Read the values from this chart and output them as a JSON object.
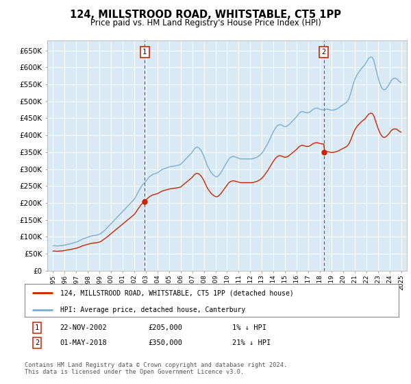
{
  "title": "124, MILLSTROOD ROAD, WHITSTABLE, CT5 1PP",
  "subtitle": "Price paid vs. HM Land Registry's House Price Index (HPI)",
  "ylim": [
    0,
    680000
  ],
  "yticks": [
    0,
    50000,
    100000,
    150000,
    200000,
    250000,
    300000,
    350000,
    400000,
    450000,
    500000,
    550000,
    600000,
    650000
  ],
  "ytick_labels": [
    "£0",
    "£50K",
    "£100K",
    "£150K",
    "£200K",
    "£250K",
    "£300K",
    "£350K",
    "£400K",
    "£450K",
    "£500K",
    "£550K",
    "£600K",
    "£650K"
  ],
  "xlim_start": 1994.5,
  "xlim_end": 2025.5,
  "background_color": "#daeaf5",
  "fig_bg_color": "#ffffff",
  "hpi_color": "#7aadcf",
  "price_color": "#cc2200",
  "vline_color": "#cc2200",
  "sale1_x": 2002.9,
  "sale1_y": 205000,
  "sale2_x": 2018.33,
  "sale2_y": 350000,
  "legend_line1": "124, MILLSTROOD ROAD, WHITSTABLE, CT5 1PP (detached house)",
  "legend_line2": "HPI: Average price, detached house, Canterbury",
  "table_row1_num": "1",
  "table_row1_date": "22-NOV-2002",
  "table_row1_price": "£205,000",
  "table_row1_hpi": "1% ↓ HPI",
  "table_row2_num": "2",
  "table_row2_date": "01-MAY-2018",
  "table_row2_price": "£350,000",
  "table_row2_hpi": "21% ↓ HPI",
  "footnote": "Contains HM Land Registry data © Crown copyright and database right 2024.\nThis data is licensed under the Open Government Licence v3.0.",
  "hpi_data": [
    [
      1995.0,
      73500
    ],
    [
      1995.08,
      74200
    ],
    [
      1995.17,
      73800
    ],
    [
      1995.25,
      73200
    ],
    [
      1995.33,
      72800
    ],
    [
      1995.42,
      73000
    ],
    [
      1995.5,
      73500
    ],
    [
      1995.58,
      74000
    ],
    [
      1995.67,
      73800
    ],
    [
      1995.75,
      74200
    ],
    [
      1995.83,
      74800
    ],
    [
      1995.92,
      75200
    ],
    [
      1996.0,
      75800
    ],
    [
      1996.08,
      76500
    ],
    [
      1996.17,
      77200
    ],
    [
      1996.25,
      77800
    ],
    [
      1996.33,
      78500
    ],
    [
      1996.42,
      79000
    ],
    [
      1996.5,
      79800
    ],
    [
      1996.58,
      80500
    ],
    [
      1996.67,
      81200
    ],
    [
      1996.75,
      82000
    ],
    [
      1996.83,
      82800
    ],
    [
      1996.92,
      83500
    ],
    [
      1997.0,
      84500
    ],
    [
      1997.08,
      85500
    ],
    [
      1997.17,
      86800
    ],
    [
      1997.25,
      88000
    ],
    [
      1997.33,
      89500
    ],
    [
      1997.42,
      91000
    ],
    [
      1997.5,
      92500
    ],
    [
      1997.58,
      94000
    ],
    [
      1997.67,
      95000
    ],
    [
      1997.75,
      96000
    ],
    [
      1997.83,
      97000
    ],
    [
      1997.92,
      98000
    ],
    [
      1998.0,
      99000
    ],
    [
      1998.08,
      100000
    ],
    [
      1998.17,
      101000
    ],
    [
      1998.25,
      102000
    ],
    [
      1998.33,
      103000
    ],
    [
      1998.42,
      103500
    ],
    [
      1998.5,
      103800
    ],
    [
      1998.58,
      104000
    ],
    [
      1998.67,
      104500
    ],
    [
      1998.75,
      105000
    ],
    [
      1998.83,
      105800
    ],
    [
      1998.92,
      106500
    ],
    [
      1999.0,
      107500
    ],
    [
      1999.08,
      109000
    ],
    [
      1999.17,
      111000
    ],
    [
      1999.25,
      113500
    ],
    [
      1999.33,
      116000
    ],
    [
      1999.42,
      118500
    ],
    [
      1999.5,
      121000
    ],
    [
      1999.58,
      124000
    ],
    [
      1999.67,
      127000
    ],
    [
      1999.75,
      130000
    ],
    [
      1999.83,
      133000
    ],
    [
      1999.92,
      136000
    ],
    [
      2000.0,
      139000
    ],
    [
      2000.08,
      142000
    ],
    [
      2000.17,
      145000
    ],
    [
      2000.25,
      148000
    ],
    [
      2000.33,
      151000
    ],
    [
      2000.42,
      154000
    ],
    [
      2000.5,
      157000
    ],
    [
      2000.58,
      160000
    ],
    [
      2000.67,
      163000
    ],
    [
      2000.75,
      166000
    ],
    [
      2000.83,
      169000
    ],
    [
      2000.92,
      172000
    ],
    [
      2001.0,
      175000
    ],
    [
      2001.08,
      178000
    ],
    [
      2001.17,
      181000
    ],
    [
      2001.25,
      184000
    ],
    [
      2001.33,
      187000
    ],
    [
      2001.42,
      190000
    ],
    [
      2001.5,
      193000
    ],
    [
      2001.58,
      196000
    ],
    [
      2001.67,
      199000
    ],
    [
      2001.75,
      202000
    ],
    [
      2001.83,
      205000
    ],
    [
      2001.92,
      208000
    ],
    [
      2002.0,
      211000
    ],
    [
      2002.08,
      216000
    ],
    [
      2002.17,
      221000
    ],
    [
      2002.25,
      227000
    ],
    [
      2002.33,
      232000
    ],
    [
      2002.42,
      237000
    ],
    [
      2002.5,
      242000
    ],
    [
      2002.58,
      247000
    ],
    [
      2002.67,
      251000
    ],
    [
      2002.75,
      255000
    ],
    [
      2002.83,
      258000
    ],
    [
      2002.92,
      261000
    ],
    [
      2003.0,
      264000
    ],
    [
      2003.08,
      268000
    ],
    [
      2003.17,
      272000
    ],
    [
      2003.25,
      275000
    ],
    [
      2003.33,
      278000
    ],
    [
      2003.42,
      280000
    ],
    [
      2003.5,
      282000
    ],
    [
      2003.58,
      284000
    ],
    [
      2003.67,
      285000
    ],
    [
      2003.75,
      286000
    ],
    [
      2003.83,
      287000
    ],
    [
      2003.92,
      288000
    ],
    [
      2004.0,
      289000
    ],
    [
      2004.08,
      291000
    ],
    [
      2004.17,
      293000
    ],
    [
      2004.25,
      295000
    ],
    [
      2004.33,
      297000
    ],
    [
      2004.42,
      299000
    ],
    [
      2004.5,
      300000
    ],
    [
      2004.58,
      301000
    ],
    [
      2004.67,
      302000
    ],
    [
      2004.75,
      303000
    ],
    [
      2004.83,
      304000
    ],
    [
      2004.92,
      305000
    ],
    [
      2005.0,
      306000
    ],
    [
      2005.08,
      307000
    ],
    [
      2005.17,
      307500
    ],
    [
      2005.25,
      308000
    ],
    [
      2005.33,
      308500
    ],
    [
      2005.42,
      309000
    ],
    [
      2005.5,
      309500
    ],
    [
      2005.58,
      310000
    ],
    [
      2005.67,
      310500
    ],
    [
      2005.75,
      311000
    ],
    [
      2005.83,
      312000
    ],
    [
      2005.92,
      313000
    ],
    [
      2006.0,
      314000
    ],
    [
      2006.08,
      317000
    ],
    [
      2006.17,
      320000
    ],
    [
      2006.25,
      323000
    ],
    [
      2006.33,
      326000
    ],
    [
      2006.42,
      329000
    ],
    [
      2006.5,
      332000
    ],
    [
      2006.58,
      335000
    ],
    [
      2006.67,
      338000
    ],
    [
      2006.75,
      341000
    ],
    [
      2006.83,
      344000
    ],
    [
      2006.92,
      347000
    ],
    [
      2007.0,
      350000
    ],
    [
      2007.08,
      355000
    ],
    [
      2007.17,
      359000
    ],
    [
      2007.25,
      362000
    ],
    [
      2007.33,
      364000
    ],
    [
      2007.42,
      365000
    ],
    [
      2007.5,
      364000
    ],
    [
      2007.58,
      362000
    ],
    [
      2007.67,
      359000
    ],
    [
      2007.75,
      355000
    ],
    [
      2007.83,
      350000
    ],
    [
      2007.92,
      344000
    ],
    [
      2008.0,
      338000
    ],
    [
      2008.08,
      330000
    ],
    [
      2008.17,
      322000
    ],
    [
      2008.25,
      314000
    ],
    [
      2008.33,
      308000
    ],
    [
      2008.42,
      302000
    ],
    [
      2008.5,
      297000
    ],
    [
      2008.58,
      292000
    ],
    [
      2008.67,
      288000
    ],
    [
      2008.75,
      285000
    ],
    [
      2008.83,
      282000
    ],
    [
      2008.92,
      280000
    ],
    [
      2009.0,
      278000
    ],
    [
      2009.08,
      277000
    ],
    [
      2009.17,
      278000
    ],
    [
      2009.25,
      280000
    ],
    [
      2009.33,
      283000
    ],
    [
      2009.42,
      287000
    ],
    [
      2009.5,
      291000
    ],
    [
      2009.58,
      296000
    ],
    [
      2009.67,
      301000
    ],
    [
      2009.75,
      306000
    ],
    [
      2009.83,
      311000
    ],
    [
      2009.92,
      316000
    ],
    [
      2010.0,
      321000
    ],
    [
      2010.08,
      326000
    ],
    [
      2010.17,
      330000
    ],
    [
      2010.25,
      333000
    ],
    [
      2010.33,
      335000
    ],
    [
      2010.42,
      336000
    ],
    [
      2010.5,
      337000
    ],
    [
      2010.58,
      337000
    ],
    [
      2010.67,
      336000
    ],
    [
      2010.75,
      335000
    ],
    [
      2010.83,
      334000
    ],
    [
      2010.92,
      333000
    ],
    [
      2011.0,
      332000
    ],
    [
      2011.08,
      331000
    ],
    [
      2011.17,
      330000
    ],
    [
      2011.25,
      330000
    ],
    [
      2011.33,
      330000
    ],
    [
      2011.42,
      330000
    ],
    [
      2011.5,
      330000
    ],
    [
      2011.58,
      330000
    ],
    [
      2011.67,
      330000
    ],
    [
      2011.75,
      330000
    ],
    [
      2011.83,
      330000
    ],
    [
      2011.92,
      330000
    ],
    [
      2012.0,
      330000
    ],
    [
      2012.08,
      330000
    ],
    [
      2012.17,
      330000
    ],
    [
      2012.25,
      331000
    ],
    [
      2012.33,
      332000
    ],
    [
      2012.42,
      333000
    ],
    [
      2012.5,
      334000
    ],
    [
      2012.58,
      335000
    ],
    [
      2012.67,
      337000
    ],
    [
      2012.75,
      339000
    ],
    [
      2012.83,
      341000
    ],
    [
      2012.92,
      344000
    ],
    [
      2013.0,
      347000
    ],
    [
      2013.08,
      351000
    ],
    [
      2013.17,
      355000
    ],
    [
      2013.25,
      360000
    ],
    [
      2013.33,
      365000
    ],
    [
      2013.42,
      370000
    ],
    [
      2013.5,
      375000
    ],
    [
      2013.58,
      381000
    ],
    [
      2013.67,
      387000
    ],
    [
      2013.75,
      393000
    ],
    [
      2013.83,
      399000
    ],
    [
      2013.92,
      405000
    ],
    [
      2014.0,
      410000
    ],
    [
      2014.08,
      416000
    ],
    [
      2014.17,
      421000
    ],
    [
      2014.25,
      425000
    ],
    [
      2014.33,
      428000
    ],
    [
      2014.42,
      430000
    ],
    [
      2014.5,
      431000
    ],
    [
      2014.58,
      431000
    ],
    [
      2014.67,
      430000
    ],
    [
      2014.75,
      429000
    ],
    [
      2014.83,
      427000
    ],
    [
      2014.92,
      426000
    ],
    [
      2015.0,
      425000
    ],
    [
      2015.08,
      426000
    ],
    [
      2015.17,
      427000
    ],
    [
      2015.25,
      429000
    ],
    [
      2015.33,
      431000
    ],
    [
      2015.42,
      434000
    ],
    [
      2015.5,
      437000
    ],
    [
      2015.58,
      440000
    ],
    [
      2015.67,
      443000
    ],
    [
      2015.75,
      446000
    ],
    [
      2015.83,
      449000
    ],
    [
      2015.92,
      452000
    ],
    [
      2016.0,
      455000
    ],
    [
      2016.08,
      459000
    ],
    [
      2016.17,
      463000
    ],
    [
      2016.25,
      466000
    ],
    [
      2016.33,
      468000
    ],
    [
      2016.42,
      470000
    ],
    [
      2016.5,
      470000
    ],
    [
      2016.58,
      469000
    ],
    [
      2016.67,
      468000
    ],
    [
      2016.75,
      467000
    ],
    [
      2016.83,
      466000
    ],
    [
      2016.92,
      466000
    ],
    [
      2017.0,
      466000
    ],
    [
      2017.08,
      467000
    ],
    [
      2017.17,
      469000
    ],
    [
      2017.25,
      471000
    ],
    [
      2017.33,
      474000
    ],
    [
      2017.42,
      476000
    ],
    [
      2017.5,
      478000
    ],
    [
      2017.58,
      479000
    ],
    [
      2017.67,
      480000
    ],
    [
      2017.75,
      480000
    ],
    [
      2017.83,
      479000
    ],
    [
      2017.92,
      478000
    ],
    [
      2018.0,
      477000
    ],
    [
      2018.08,
      476000
    ],
    [
      2018.17,
      475000
    ],
    [
      2018.25,
      475000
    ],
    [
      2018.33,
      475000
    ],
    [
      2018.42,
      475000
    ],
    [
      2018.5,
      476000
    ],
    [
      2018.58,
      477000
    ],
    [
      2018.67,
      477000
    ],
    [
      2018.75,
      476000
    ],
    [
      2018.83,
      475000
    ],
    [
      2018.92,
      474000
    ],
    [
      2019.0,
      474000
    ],
    [
      2019.08,
      474000
    ],
    [
      2019.17,
      474000
    ],
    [
      2019.25,
      475000
    ],
    [
      2019.33,
      476000
    ],
    [
      2019.42,
      477000
    ],
    [
      2019.5,
      478000
    ],
    [
      2019.58,
      480000
    ],
    [
      2019.67,
      482000
    ],
    [
      2019.75,
      484000
    ],
    [
      2019.83,
      486000
    ],
    [
      2019.92,
      488000
    ],
    [
      2020.0,
      490000
    ],
    [
      2020.08,
      492000
    ],
    [
      2020.17,
      494000
    ],
    [
      2020.25,
      496000
    ],
    [
      2020.33,
      499000
    ],
    [
      2020.42,
      503000
    ],
    [
      2020.5,
      508000
    ],
    [
      2020.58,
      516000
    ],
    [
      2020.67,
      525000
    ],
    [
      2020.75,
      535000
    ],
    [
      2020.83,
      545000
    ],
    [
      2020.92,
      555000
    ],
    [
      2021.0,
      563000
    ],
    [
      2021.08,
      570000
    ],
    [
      2021.17,
      576000
    ],
    [
      2021.25,
      581000
    ],
    [
      2021.33,
      585000
    ],
    [
      2021.42,
      589000
    ],
    [
      2021.5,
      593000
    ],
    [
      2021.58,
      597000
    ],
    [
      2021.67,
      600000
    ],
    [
      2021.75,
      603000
    ],
    [
      2021.83,
      606000
    ],
    [
      2021.92,
      610000
    ],
    [
      2022.0,
      615000
    ],
    [
      2022.08,
      620000
    ],
    [
      2022.17,
      625000
    ],
    [
      2022.25,
      628000
    ],
    [
      2022.33,
      630000
    ],
    [
      2022.42,
      631000
    ],
    [
      2022.5,
      630000
    ],
    [
      2022.58,
      626000
    ],
    [
      2022.67,
      618000
    ],
    [
      2022.75,
      607000
    ],
    [
      2022.83,
      595000
    ],
    [
      2022.92,
      583000
    ],
    [
      2023.0,
      572000
    ],
    [
      2023.08,
      562000
    ],
    [
      2023.17,
      553000
    ],
    [
      2023.25,
      546000
    ],
    [
      2023.33,
      540000
    ],
    [
      2023.42,
      536000
    ],
    [
      2023.5,
      534000
    ],
    [
      2023.58,
      534000
    ],
    [
      2023.67,
      536000
    ],
    [
      2023.75,
      539000
    ],
    [
      2023.83,
      543000
    ],
    [
      2023.92,
      547000
    ],
    [
      2024.0,
      552000
    ],
    [
      2024.08,
      557000
    ],
    [
      2024.17,
      562000
    ],
    [
      2024.25,
      565000
    ],
    [
      2024.33,
      567000
    ],
    [
      2024.42,
      568000
    ],
    [
      2024.5,
      568000
    ],
    [
      2024.58,
      567000
    ],
    [
      2024.67,
      565000
    ],
    [
      2024.75,
      562000
    ],
    [
      2024.83,
      559000
    ],
    [
      2024.92,
      557000
    ],
    [
      2025.0,
      555000
    ]
  ],
  "price_scale1": 205000,
  "price_base1_hpi": 207000,
  "price_scale2": 350000,
  "price_base2_hpi": 444000
}
